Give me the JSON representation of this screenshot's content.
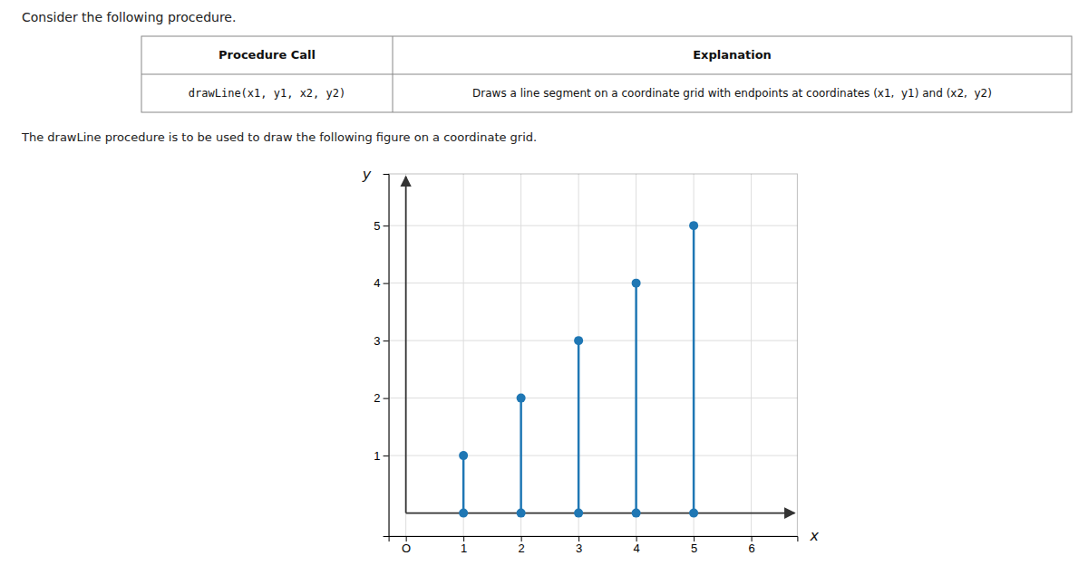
{
  "chart_data": {
    "type": "stem",
    "title": "Consider the following procedure.",
    "annotations": [
      "Procedure Call",
      "Explanation",
      "drawLine(x1, y1, x2, y2)",
      "Draws a line segment on a coordinate grid with endpoints at coordinates (x1,  y1) and (x2,  y2)"
    ],
    "subtitle": "The drawLine procedure is to be used to draw the following figure on a coordinate grid.",
    "x": [
      1,
      2,
      3,
      4,
      5
    ],
    "values": [
      1,
      2,
      3,
      4,
      5
    ],
    "xlim": [
      -0.3,
      6.8
    ],
    "ylim": [
      -0.4,
      5.9
    ],
    "xticks": [
      {
        "value": 0,
        "label": "O"
      },
      1,
      2,
      3,
      4,
      5,
      6
    ],
    "yticks": [
      1,
      2,
      3,
      4,
      5
    ],
    "xlabel": "x",
    "ylabel": "y",
    "grid": true
  }
}
